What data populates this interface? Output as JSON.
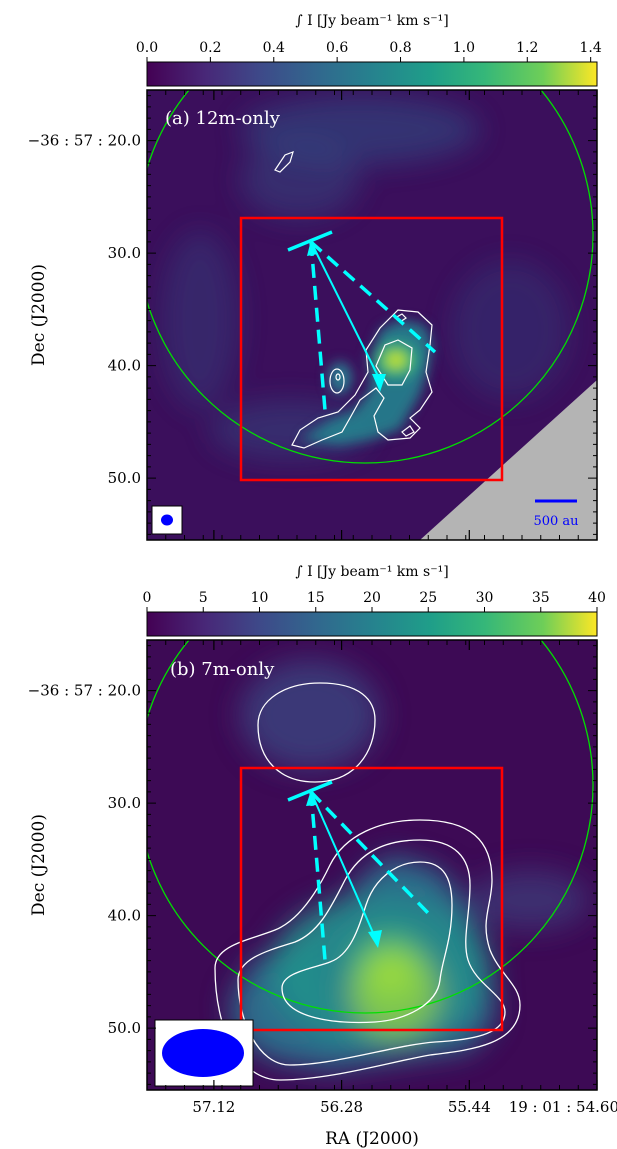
{
  "figure": {
    "shared_xlabel": "RA (J2000)",
    "shared_ylabel": "Dec (J2000)"
  },
  "chart_data": [
    {
      "type": "heatmap",
      "panel_label": "(a) 12m-only",
      "colorbar": {
        "label": "∫ I [Jy beam⁻¹ km s⁻¹]",
        "range": [
          0.0,
          1.42
        ],
        "ticks": [
          0.0,
          0.2,
          0.4,
          0.6,
          0.8,
          1.0,
          1.2,
          1.4
        ],
        "tick_labels": [
          "0.0",
          "0.2",
          "0.4",
          "0.6",
          "0.8",
          "1.0",
          "1.2",
          "1.4"
        ],
        "colormap": "viridis"
      },
      "xlabel": "",
      "ylabel": "Dec (J2000)",
      "yticks": [
        {
          "value": 20.0,
          "label": "−36 : 57 : 20.0"
        },
        {
          "value": 30.0,
          "label": "30.0"
        },
        {
          "value": 40.0,
          "label": "40.0"
        },
        {
          "value": 50.0,
          "label": "50.0"
        }
      ],
      "xticks": [],
      "ylim": [
        55.5,
        15.5
      ],
      "peak_intensity": 1.42,
      "scalebar_label": "500 au",
      "beam_shape": "small circle (lower-left)",
      "grid": false
    },
    {
      "type": "heatmap",
      "panel_label": "(b) 7m-only",
      "colorbar": {
        "label": "∫ I [Jy beam⁻¹ km s⁻¹]",
        "range": [
          0,
          40
        ],
        "ticks": [
          0,
          5,
          10,
          15,
          20,
          25,
          30,
          35,
          40
        ],
        "tick_labels": [
          "0",
          "5",
          "10",
          "15",
          "20",
          "25",
          "30",
          "35",
          "40"
        ],
        "colormap": "viridis"
      },
      "xlabel": "RA (J2000)",
      "ylabel": "Dec (J2000)",
      "yticks": [
        {
          "value": 20.0,
          "label": "−36 : 57 : 20.0"
        },
        {
          "value": 30.0,
          "label": "30.0"
        },
        {
          "value": 40.0,
          "label": "40.0"
        },
        {
          "value": 50.0,
          "label": "50.0"
        }
      ],
      "xticks": [
        {
          "value": 57.12,
          "label": "57.12"
        },
        {
          "value": 56.28,
          "label": "56.28"
        },
        {
          "value": 55.44,
          "label": "55.44"
        },
        {
          "value": 54.6,
          "label": "19 : 01 : 54.60"
        }
      ],
      "ylim": [
        55.5,
        15.5
      ],
      "peak_intensity": 37,
      "beam_shape": "large ellipse (lower-left)",
      "grid": false
    }
  ],
  "colors": {
    "frame": "#000000",
    "region_box": "#ff0000",
    "primary_beam_circle": "#00e000",
    "outflow_arrows": "#00ffff",
    "contours": "#ffffff",
    "beam": "#0000ff",
    "scalebar": "#0000ff",
    "masked_area": "#b4b4b4",
    "background": "#3d0a55"
  }
}
